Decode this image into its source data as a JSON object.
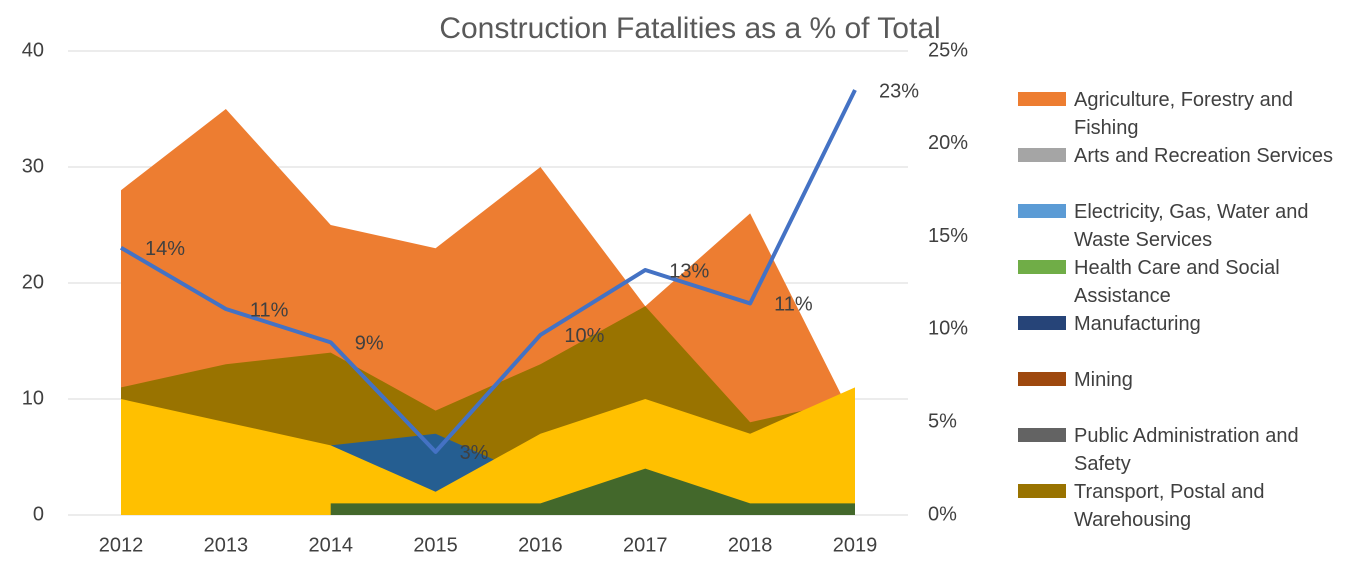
{
  "chart_data": {
    "type": "area",
    "title": "Construction Fatalities as a % of Total",
    "categories": [
      "2012",
      "2013",
      "2014",
      "2015",
      "2016",
      "2017",
      "2018",
      "2019"
    ],
    "series": [
      {
        "name": "Agriculture, Forestry and Fishing",
        "color": "#ED7D31",
        "values": [
          28,
          35,
          25,
          23,
          30,
          18,
          26,
          8
        ]
      },
      {
        "name": "Arts and Recreation Services",
        "color": "#A5A5A5",
        "values": [
          null,
          null,
          null,
          null,
          null,
          null,
          null,
          null
        ]
      },
      {
        "name": "Electricity, Gas, Water and Waste Services",
        "color": "#5B9BD5",
        "values": [
          null,
          null,
          null,
          null,
          null,
          null,
          null,
          null
        ]
      },
      {
        "name": "Health Care and Social Assistance",
        "color": "#70AD47",
        "area_color": "#43682B",
        "values": [
          null,
          null,
          1,
          1,
          1,
          4,
          1,
          1
        ]
      },
      {
        "name": "Manufacturing",
        "color": "#264478",
        "area_color": "#255E91",
        "values": [
          null,
          null,
          6,
          7,
          3,
          null,
          null,
          null
        ]
      },
      {
        "name": "Mining",
        "color": "#9E480E",
        "values": [
          null,
          null,
          null,
          null,
          null,
          null,
          null,
          null
        ]
      },
      {
        "name": "Public Administration and Safety",
        "color": "#636363",
        "values": [
          null,
          null,
          null,
          null,
          null,
          null,
          null,
          null
        ]
      },
      {
        "name": "Transport, Postal and Warehousing",
        "color": "#997300",
        "values": [
          11,
          13,
          14,
          9,
          13,
          18,
          8,
          10
        ]
      },
      {
        "color": "#FFC000",
        "values": [
          10,
          8,
          6,
          2,
          7,
          10,
          7,
          11
        ]
      },
      {
        "type": "line",
        "axis": "y2",
        "color": "#4472C4",
        "values": [
          14.4,
          11.1,
          9.3,
          3.4,
          9.7,
          13.2,
          11.4,
          22.9
        ],
        "value_labels": [
          "14%",
          "11%",
          "9%",
          "3%",
          "10%",
          "13%",
          "11%",
          "23%"
        ]
      }
    ],
    "ylim": [
      0,
      40
    ],
    "yticks": [
      0,
      10,
      20,
      30,
      40
    ],
    "y2lim": [
      0,
      25
    ],
    "y2ticks": [
      {
        "value": 0,
        "label": "0%"
      },
      {
        "value": 5,
        "label": "5%"
      },
      {
        "value": 10,
        "label": "10%"
      },
      {
        "value": 15,
        "label": "15%"
      },
      {
        "value": 20,
        "label": "20%"
      },
      {
        "value": 25,
        "label": "25%"
      }
    ],
    "grid": true,
    "legend": "right"
  }
}
